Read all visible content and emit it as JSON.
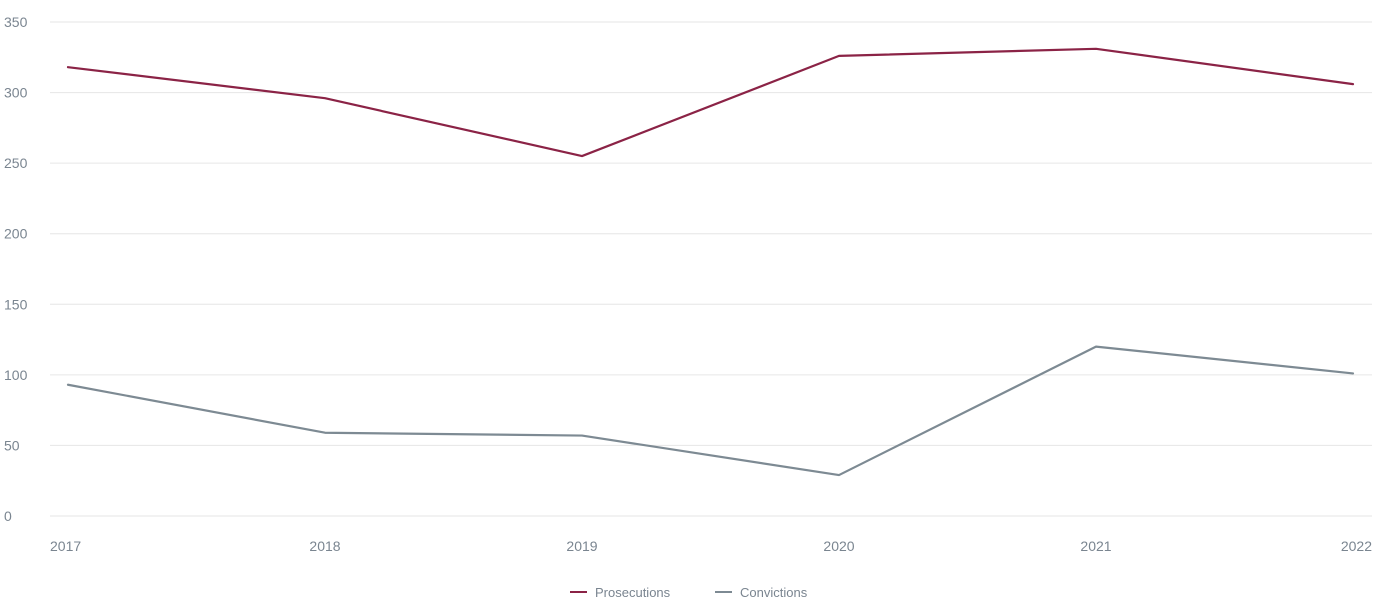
{
  "chart_data": {
    "type": "line",
    "title": "",
    "xlabel": "",
    "ylabel": "",
    "categories": [
      "2017",
      "2018",
      "2019",
      "2020",
      "2021",
      "2022"
    ],
    "yticks": [
      "0",
      "50",
      "100",
      "150",
      "200",
      "250",
      "300",
      "350"
    ],
    "ylim": [
      0,
      350
    ],
    "grid": true,
    "legend_position": "bottom-center",
    "series": [
      {
        "name": "Prosecutions",
        "color": "#8b2346",
        "values": [
          318,
          296,
          255,
          326,
          331,
          306
        ]
      },
      {
        "name": "Convictions",
        "color": "#7d8a93",
        "values": [
          93,
          59,
          57,
          29,
          120,
          101
        ]
      }
    ]
  }
}
